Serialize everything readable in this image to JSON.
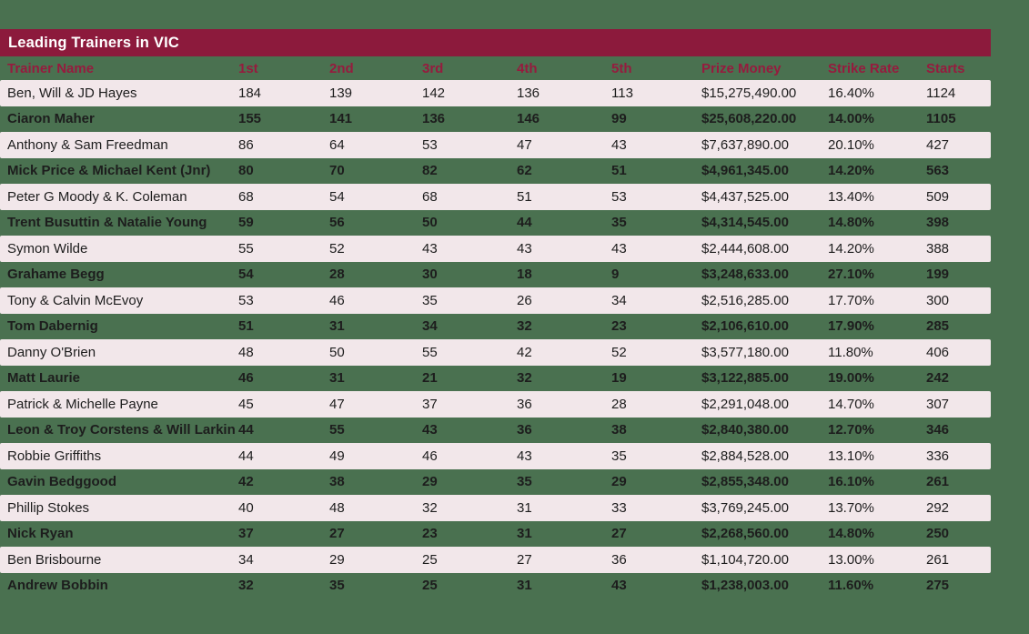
{
  "title": "Leading Trainers in VIC",
  "colors": {
    "page_background": "#4A7150",
    "title_bar": "#8C1A3C",
    "title_text": "#FFFFFF",
    "column_header_text": "#961B3E",
    "row_alt_background": "#F2E7EA",
    "row_text": "#1D1D1D"
  },
  "table": {
    "columns": [
      "Trainer Name",
      "1st",
      "2nd",
      "3rd",
      "4th",
      "5th",
      "Prize Money",
      "Strike Rate",
      "Starts"
    ],
    "rows": [
      [
        "Ben, Will & JD Hayes",
        "184",
        "139",
        "142",
        "136",
        "113",
        "$15,275,490.00",
        "16.40%",
        "1124"
      ],
      [
        "Ciaron Maher",
        "155",
        "141",
        "136",
        "146",
        "99",
        "$25,608,220.00",
        "14.00%",
        "1105"
      ],
      [
        "Anthony & Sam Freedman",
        "86",
        "64",
        "53",
        "47",
        "43",
        "$7,637,890.00",
        "20.10%",
        "427"
      ],
      [
        "Mick Price & Michael Kent (Jnr)",
        "80",
        "70",
        "82",
        "62",
        "51",
        "$4,961,345.00",
        "14.20%",
        "563"
      ],
      [
        "Peter G Moody & K. Coleman",
        "68",
        "54",
        "68",
        "51",
        "53",
        "$4,437,525.00",
        "13.40%",
        "509"
      ],
      [
        "Trent Busuttin & Natalie Young",
        "59",
        "56",
        "50",
        "44",
        "35",
        "$4,314,545.00",
        "14.80%",
        "398"
      ],
      [
        "Symon Wilde",
        "55",
        "52",
        "43",
        "43",
        "43",
        "$2,444,608.00",
        "14.20%",
        "388"
      ],
      [
        "Grahame Begg",
        "54",
        "28",
        "30",
        "18",
        "9",
        "$3,248,633.00",
        "27.10%",
        "199"
      ],
      [
        "Tony & Calvin McEvoy",
        "53",
        "46",
        "35",
        "26",
        "34",
        "$2,516,285.00",
        "17.70%",
        "300"
      ],
      [
        "Tom Dabernig",
        "51",
        "31",
        "34",
        "32",
        "23",
        "$2,106,610.00",
        "17.90%",
        "285"
      ],
      [
        "Danny O'Brien",
        "48",
        "50",
        "55",
        "42",
        "52",
        "$3,577,180.00",
        "11.80%",
        "406"
      ],
      [
        "Matt Laurie",
        "46",
        "31",
        "21",
        "32",
        "19",
        "$3,122,885.00",
        "19.00%",
        "242"
      ],
      [
        "Patrick & Michelle Payne",
        "45",
        "47",
        "37",
        "36",
        "28",
        "$2,291,048.00",
        "14.70%",
        "307"
      ],
      [
        "Leon & Troy Corstens & Will Larkin",
        "44",
        "55",
        "43",
        "36",
        "38",
        "$2,840,380.00",
        "12.70%",
        "346"
      ],
      [
        "Robbie Griffiths",
        "44",
        "49",
        "46",
        "43",
        "35",
        "$2,884,528.00",
        "13.10%",
        "336"
      ],
      [
        "Gavin Bedggood",
        "42",
        "38",
        "29",
        "35",
        "29",
        "$2,855,348.00",
        "16.10%",
        "261"
      ],
      [
        "Phillip Stokes",
        "40",
        "48",
        "32",
        "31",
        "33",
        "$3,769,245.00",
        "13.70%",
        "292"
      ],
      [
        "Nick Ryan",
        "37",
        "27",
        "23",
        "31",
        "27",
        "$2,268,560.00",
        "14.80%",
        "250"
      ],
      [
        "Ben Brisbourne",
        "34",
        "29",
        "25",
        "27",
        "36",
        "$1,104,720.00",
        "13.00%",
        "261"
      ],
      [
        "Andrew Bobbin",
        "32",
        "35",
        "25",
        "31",
        "43",
        "$1,238,003.00",
        "11.60%",
        "275"
      ]
    ]
  }
}
